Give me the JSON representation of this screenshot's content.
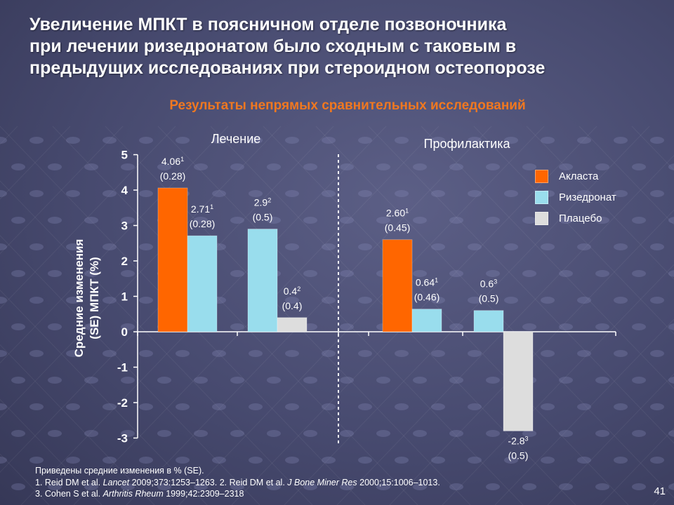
{
  "title_lines": [
    "Увеличение МПКТ в поясничном отделе позвоночника",
    "при лечении ризедронатом было сходным с таковым в",
    "предыдущих исследованиях при стероидном остеопорозе"
  ],
  "subtitle": "Результаты непрямых сравнительных исследований",
  "chart_data": {
    "type": "bar",
    "ylabel_lines": [
      "Средние изменения",
      "(SE) МПКТ (%)"
    ],
    "ylim": [
      -3,
      5
    ],
    "yticks": [
      "5",
      "4",
      "3",
      "2",
      "1",
      "0",
      "-1",
      "-2",
      "-3"
    ],
    "groups": [
      "Лечение",
      "Профилактика"
    ],
    "legend": [
      {
        "name": "Акласта",
        "color": "#ff6600"
      },
      {
        "name": "Ризедронат",
        "color": "#99dded"
      },
      {
        "name": "Плацебо",
        "color": "#dddddd"
      }
    ],
    "bars": [
      {
        "group": "Лечение",
        "series": "Акласта",
        "value": 4.06,
        "label": "4.06",
        "ref": "1",
        "se": "(0.28)"
      },
      {
        "group": "Лечение",
        "series": "Ризедронат",
        "value": 2.71,
        "label": "2.71",
        "ref": "1",
        "se": "(0.28)"
      },
      {
        "group": "Лечение",
        "series": "Ризедронат",
        "value": 2.9,
        "label": "2.9",
        "ref": "2",
        "se": "(0.5)"
      },
      {
        "group": "Лечение",
        "series": "Плацебо",
        "value": 0.4,
        "label": "0.4",
        "ref": "2",
        "se": "(0.4)"
      },
      {
        "group": "Профилактика",
        "series": "Акласта",
        "value": 2.6,
        "label": "2.60",
        "ref": "1",
        "se": "(0.45)"
      },
      {
        "group": "Профилактика",
        "series": "Ризедронат",
        "value": 0.64,
        "label": "0.64",
        "ref": "1",
        "se": "(0.46)"
      },
      {
        "group": "Профилактика",
        "series": "Ризедронат",
        "value": 0.6,
        "label": "0.6",
        "ref": "3",
        "se": "(0.5)"
      },
      {
        "group": "Профилактика",
        "series": "Плацебо",
        "value": -2.8,
        "label": "-2.8",
        "ref": "3",
        "se": "(0.5)"
      }
    ]
  },
  "footnotes": {
    "line1": "Приведены средние изменения в % (SE).",
    "ref1_pre": "1. Reid DM et al. ",
    "ref1_journal": "Lancet",
    "ref1_post": " 2009;373:1253–1263. 2. Reid DM et al. ",
    "ref2_journal": "J Bone Miner Res",
    "ref2_post": " 2000;15:1006–1013.",
    "ref3_pre": "3. Cohen S et al. ",
    "ref3_journal": "Arthritis Rheum",
    "ref3_post": " 1999;42:2309–2318"
  },
  "page_number": "41",
  "colors": {
    "background": "#474a6f",
    "accent": "#f07820"
  }
}
